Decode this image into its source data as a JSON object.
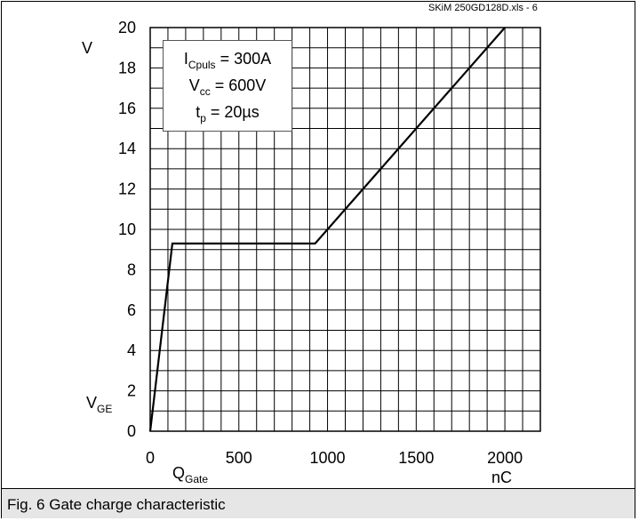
{
  "chart_data": {
    "type": "line",
    "file_label": "SKiM 250GD128D.xls - 6",
    "caption": "Fig. 6 Gate charge characteristic",
    "x_unit": "nC",
    "y_unit": "V",
    "xlabel_main": "Q",
    "xlabel_sub": "Gate",
    "ylabel_main": "V",
    "ylabel_sub": "GE",
    "xlim": [
      0,
      2200
    ],
    "ylim": [
      0,
      20
    ],
    "x_ticks": [
      0,
      500,
      1000,
      1500,
      2000
    ],
    "y_ticks": [
      0,
      2,
      4,
      6,
      8,
      10,
      12,
      14,
      16,
      18,
      20
    ],
    "grid": true,
    "annotations": [
      {
        "main": "I",
        "sub": "Cpuls",
        "rest": " = 300A"
      },
      {
        "main": "V",
        "sub": "cc",
        "rest": " = 600V"
      },
      {
        "main": "t",
        "sub": "p",
        "rest": " = 20µs"
      }
    ],
    "series": [
      {
        "x": [
          0,
          125,
          930,
          2000
        ],
        "y": [
          0,
          9.3,
          9.3,
          20
        ]
      }
    ]
  }
}
